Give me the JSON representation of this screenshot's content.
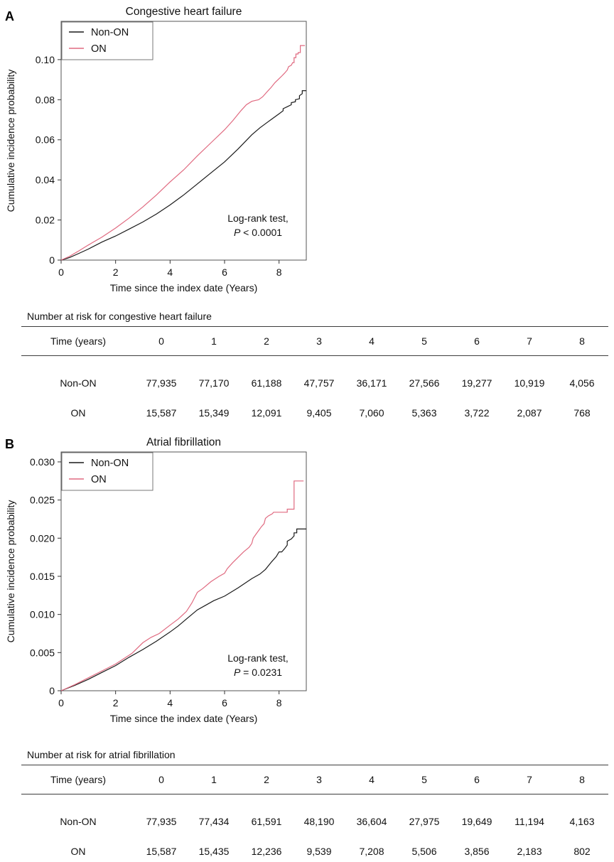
{
  "figure": {
    "accent_red": "#e06a80",
    "series_black": "#1a1a1a"
  },
  "chart_data": [
    {
      "panel_label": "A",
      "type": "line",
      "title": "Congestive heart failure",
      "xlabel": "Time since the index date (Years)",
      "ylabel": "Cumulative incidence probability",
      "xlim": [
        0,
        9.0
      ],
      "ylim": [
        0,
        0.1191
      ],
      "x_ticks": [
        0,
        2,
        4,
        6,
        8
      ],
      "y_ticks": [
        {
          "label": "0",
          "v": 0
        },
        {
          "label": "0.02",
          "v": 0.02
        },
        {
          "label": "0.04",
          "v": 0.04
        },
        {
          "label": "0.06",
          "v": 0.06
        },
        {
          "label": "0.08",
          "v": 0.08
        },
        {
          "label": "0.10",
          "v": 0.1
        }
      ],
      "grid": false,
      "legend": {
        "position": "top-left",
        "entries": [
          {
            "label": "Non-ON",
            "color": "#1a1a1a"
          },
          {
            "label": "ON",
            "color": "#e06a80"
          }
        ]
      },
      "annotation": {
        "intro": "Log-rank test,",
        "p": "P",
        "comparison": " < 0.0001"
      },
      "series": [
        {
          "name": "Non-ON",
          "color": "#1a1a1a",
          "points": [
            [
              0,
              0
            ],
            [
              0.3,
              0.0012
            ],
            [
              0.6,
              0.003
            ],
            [
              1,
              0.0055
            ],
            [
              1.5,
              0.009
            ],
            [
              2,
              0.012
            ],
            [
              2.5,
              0.0155
            ],
            [
              3,
              0.019
            ],
            [
              3.5,
              0.023
            ],
            [
              4,
              0.0275
            ],
            [
              4.5,
              0.0325
            ],
            [
              5,
              0.038
            ],
            [
              5.5,
              0.0435
            ],
            [
              6,
              0.049
            ],
            [
              6.5,
              0.0555
            ],
            [
              7,
              0.0625
            ],
            [
              7.3,
              0.066
            ],
            [
              7.6,
              0.069
            ],
            [
              8,
              0.073
            ],
            [
              8.15,
              0.0745
            ],
            [
              8.15,
              0.0755
            ],
            [
              8.3,
              0.0765
            ],
            [
              8.45,
              0.0775
            ],
            [
              8.45,
              0.0785
            ],
            [
              8.6,
              0.079
            ],
            [
              8.6,
              0.08
            ],
            [
              8.75,
              0.0805
            ],
            [
              8.75,
              0.082
            ],
            [
              8.85,
              0.083
            ],
            [
              8.85,
              0.0845
            ],
            [
              9,
              0.0845
            ]
          ]
        },
        {
          "name": "ON",
          "color": "#e06a80",
          "points": [
            [
              0,
              0
            ],
            [
              0.3,
              0.0018
            ],
            [
              0.6,
              0.0042
            ],
            [
              1,
              0.0075
            ],
            [
              1.5,
              0.0115
            ],
            [
              2,
              0.016
            ],
            [
              2.5,
              0.021
            ],
            [
              3,
              0.0265
            ],
            [
              3.5,
              0.0325
            ],
            [
              4,
              0.039
            ],
            [
              4.5,
              0.045
            ],
            [
              5,
              0.052
            ],
            [
              5.5,
              0.0585
            ],
            [
              6,
              0.065
            ],
            [
              6.3,
              0.0695
            ],
            [
              6.6,
              0.0745
            ],
            [
              6.8,
              0.0775
            ],
            [
              7,
              0.0792
            ],
            [
              7.25,
              0.08
            ],
            [
              7.4,
              0.0815
            ],
            [
              7.55,
              0.0838
            ],
            [
              7.7,
              0.086
            ],
            [
              7.85,
              0.0885
            ],
            [
              8,
              0.0905
            ],
            [
              8.1,
              0.0918
            ],
            [
              8.2,
              0.0932
            ],
            [
              8.3,
              0.0948
            ],
            [
              8.35,
              0.0965
            ],
            [
              8.45,
              0.0972
            ],
            [
              8.5,
              0.0985
            ],
            [
              8.55,
              0.0985
            ],
            [
              8.55,
              0.101
            ],
            [
              8.62,
              0.101
            ],
            [
              8.62,
              0.1028
            ],
            [
              8.7,
              0.1028
            ],
            [
              8.7,
              0.1035
            ],
            [
              8.78,
              0.1035
            ],
            [
              8.78,
              0.107
            ],
            [
              8.95,
              0.107
            ]
          ]
        }
      ],
      "risk_table": {
        "title": "Number at risk for congestive heart failure",
        "time_label": "Time (years)",
        "time_values": [
          "0",
          "1",
          "2",
          "3",
          "4",
          "5",
          "6",
          "7",
          "8"
        ],
        "rows": [
          {
            "name": "Non-ON",
            "values": [
              "77,935",
              "77,170",
              "61,188",
              "47,757",
              "36,171",
              "27,566",
              "19,277",
              "10,919",
              "4,056"
            ]
          },
          {
            "name": "ON",
            "values": [
              "15,587",
              "15,349",
              "12,091",
              "9,405",
              "7,060",
              "5,363",
              "3,722",
              "2,087",
              "768"
            ]
          }
        ]
      }
    },
    {
      "panel_label": "B",
      "type": "line",
      "title": "Atrial fibrillation",
      "xlabel": "Time since the index date (Years)",
      "ylabel": "Cumulative incidence probability",
      "xlim": [
        0,
        9.0
      ],
      "ylim": [
        0,
        0.0313
      ],
      "x_ticks": [
        0,
        2,
        4,
        6,
        8
      ],
      "y_ticks": [
        {
          "label": "0",
          "v": 0
        },
        {
          "label": "0.005",
          "v": 0.005
        },
        {
          "label": "0.010",
          "v": 0.01
        },
        {
          "label": "0.015",
          "v": 0.015
        },
        {
          "label": "0.020",
          "v": 0.02
        },
        {
          "label": "0.025",
          "v": 0.025
        },
        {
          "label": "0.030",
          "v": 0.03
        }
      ],
      "grid": false,
      "legend": {
        "position": "top-left",
        "entries": [
          {
            "label": "Non-ON",
            "color": "#1a1a1a"
          },
          {
            "label": "ON",
            "color": "#e06a80"
          }
        ]
      },
      "annotation": {
        "intro": "Log-rank test,",
        "p": "P",
        "comparison": " = 0.0231"
      },
      "series": [
        {
          "name": "Non-ON",
          "color": "#1a1a1a",
          "points": [
            [
              0,
              0
            ],
            [
              0.5,
              0.0007
            ],
            [
              1,
              0.0015
            ],
            [
              1.5,
              0.0024
            ],
            [
              2,
              0.0033
            ],
            [
              2.5,
              0.0044
            ],
            [
              3,
              0.0054
            ],
            [
              3.5,
              0.0065
            ],
            [
              4,
              0.0077
            ],
            [
              4.3,
              0.0085
            ],
            [
              4.6,
              0.0094
            ],
            [
              5,
              0.0106
            ],
            [
              5.3,
              0.0112
            ],
            [
              5.6,
              0.0118
            ],
            [
              6,
              0.0124
            ],
            [
              6.5,
              0.0135
            ],
            [
              7,
              0.0147
            ],
            [
              7.3,
              0.0153
            ],
            [
              7.5,
              0.0159
            ],
            [
              7.7,
              0.0168
            ],
            [
              7.9,
              0.0176
            ],
            [
              8,
              0.0182
            ],
            [
              8.1,
              0.0182
            ],
            [
              8.2,
              0.0186
            ],
            [
              8.3,
              0.0191
            ],
            [
              8.3,
              0.0196
            ],
            [
              8.45,
              0.0199
            ],
            [
              8.55,
              0.0203
            ],
            [
              8.55,
              0.0207
            ],
            [
              8.65,
              0.0207
            ],
            [
              8.65,
              0.0212
            ],
            [
              9,
              0.0212
            ]
          ]
        },
        {
          "name": "ON",
          "color": "#e06a80",
          "points": [
            [
              0,
              0
            ],
            [
              0.5,
              0.0008
            ],
            [
              1,
              0.0017
            ],
            [
              1.5,
              0.0026
            ],
            [
              2,
              0.0035
            ],
            [
              2.3,
              0.0042
            ],
            [
              2.6,
              0.0049
            ],
            [
              3,
              0.0063
            ],
            [
              3.3,
              0.007
            ],
            [
              3.6,
              0.0075
            ],
            [
              4,
              0.0086
            ],
            [
              4.3,
              0.0094
            ],
            [
              4.6,
              0.0104
            ],
            [
              4.8,
              0.0115
            ],
            [
              5,
              0.0129
            ],
            [
              5.2,
              0.0134
            ],
            [
              5.5,
              0.0143
            ],
            [
              5.8,
              0.015
            ],
            [
              6,
              0.0154
            ],
            [
              6.1,
              0.016
            ],
            [
              6.3,
              0.0168
            ],
            [
              6.5,
              0.0175
            ],
            [
              6.7,
              0.0182
            ],
            [
              6.9,
              0.0188
            ],
            [
              7,
              0.0193
            ],
            [
              7.05,
              0.02
            ],
            [
              7.15,
              0.0205
            ],
            [
              7.25,
              0.021
            ],
            [
              7.35,
              0.0215
            ],
            [
              7.45,
              0.0219
            ],
            [
              7.5,
              0.0226
            ],
            [
              7.6,
              0.0229
            ],
            [
              7.75,
              0.0232
            ],
            [
              7.8,
              0.0234
            ],
            [
              8.3,
              0.0234
            ],
            [
              8.3,
              0.0238
            ],
            [
              8.55,
              0.0238
            ],
            [
              8.55,
              0.0275
            ],
            [
              8.9,
              0.0275
            ]
          ]
        }
      ],
      "risk_table": {
        "title": "Number at risk for atrial fibrillation",
        "time_label": "Time (years)",
        "time_values": [
          "0",
          "1",
          "2",
          "3",
          "4",
          "5",
          "6",
          "7",
          "8"
        ],
        "rows": [
          {
            "name": "Non-ON",
            "values": [
              "77,935",
              "77,434",
              "61,591",
              "48,190",
              "36,604",
              "27,975",
              "19,649",
              "11,194",
              "4,163"
            ]
          },
          {
            "name": "ON",
            "values": [
              "15,587",
              "15,435",
              "12,236",
              "9,539",
              "7,208",
              "5,506",
              "3,856",
              "2,183",
              "802"
            ]
          }
        ]
      }
    }
  ]
}
